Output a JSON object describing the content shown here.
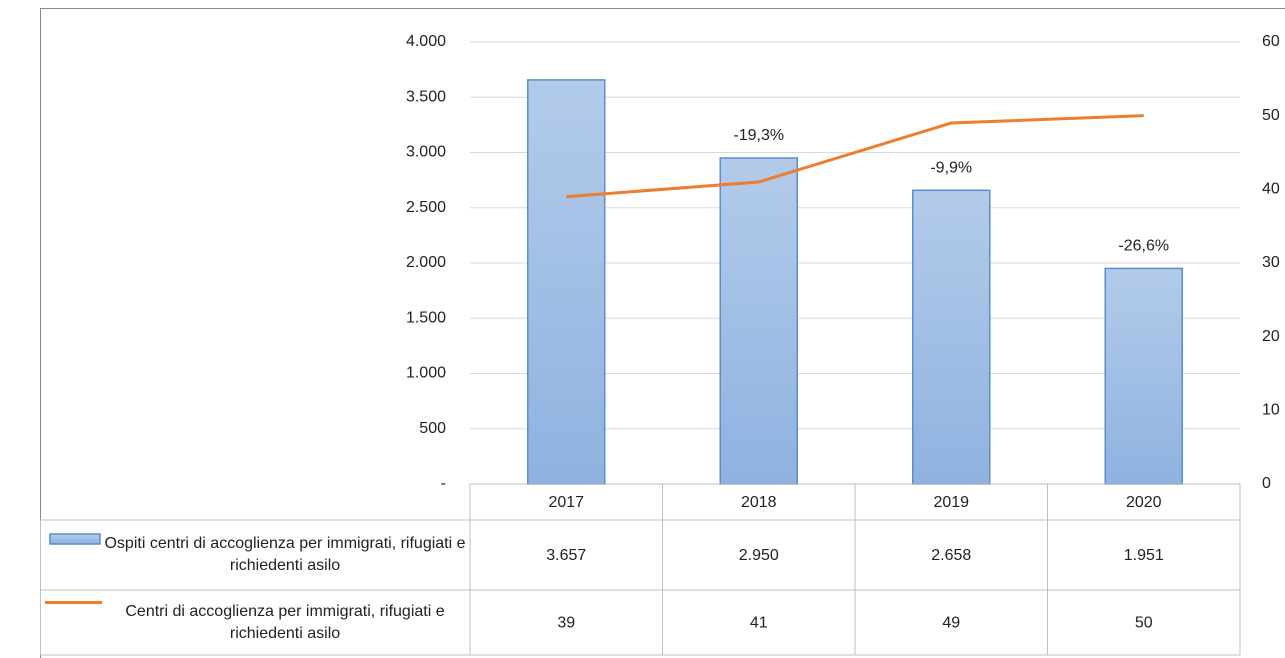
{
  "chart_data": {
    "type": "bar_line_table",
    "categories": [
      "2017",
      "2018",
      "2019",
      "2020"
    ],
    "series": [
      {
        "name": "Ospiti centri di accoglienza per immigrati, rifugiati e richiedenti asilo",
        "type": "bar",
        "color": "#9dbde6",
        "values": [
          3657,
          2950,
          2658,
          1951
        ],
        "value_labels": [
          "3.657",
          "2.950",
          "2.658",
          "1.951"
        ]
      },
      {
        "name": "Centri di accoglienza per immigrati, rifugiati e richiedenti asilo",
        "type": "line",
        "axis": "y2",
        "color": "#ed7d31",
        "values": [
          39,
          41,
          49,
          50
        ]
      }
    ],
    "annotations": [
      {
        "category": "2018",
        "text": "-19,3%"
      },
      {
        "category": "2019",
        "text": "-9,9%"
      },
      {
        "category": "2020",
        "text": "-26,6%"
      }
    ],
    "ylim": [
      0,
      4000
    ],
    "yticks": [
      {
        "value": 0,
        "label": "-"
      },
      500,
      {
        "value": 1000,
        "label": "1.000"
      },
      {
        "value": 1500,
        "label": "1.500"
      },
      {
        "value": 2000,
        "label": "2.000"
      },
      {
        "value": 2500,
        "label": "2.500"
      },
      {
        "value": 3000,
        "label": "3.000"
      },
      {
        "value": 3500,
        "label": "3.500"
      },
      {
        "value": 4000,
        "label": "4.000"
      }
    ],
    "y2lim": [
      0,
      60
    ],
    "y2ticks": [
      0,
      10,
      20,
      30,
      40,
      50,
      60
    ],
    "grid": true
  }
}
